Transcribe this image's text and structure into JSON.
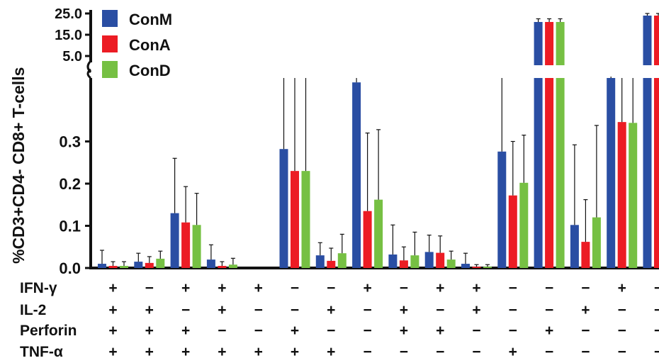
{
  "chart_data": {
    "type": "bar",
    "ylabel": "%CD3+CD4- CD8+ T-cells",
    "y_axis_lower": {
      "range": [
        0,
        0.45
      ],
      "ticks": [
        "0.0",
        "0.1",
        "0.2",
        "0.3"
      ]
    },
    "y_axis_upper": {
      "range": [
        0,
        25
      ],
      "ticks": [
        "5.0",
        "15.0",
        "25.0"
      ]
    },
    "axis_break": true,
    "legend": {
      "position": "top-left",
      "entries": [
        "ConM",
        "ConA",
        "ConD"
      ]
    },
    "colors": {
      "ConM": "#2a4ea3",
      "ConA": "#ec1c24",
      "ConD": "#76c043"
    },
    "condition_rows": [
      "IFN-γ",
      "IL-2",
      "Perforin",
      "TNF-α"
    ],
    "categories": [
      {
        "signs": [
          "+",
          "+",
          "+",
          "+"
        ]
      },
      {
        "signs": [
          "−",
          "+",
          "+",
          "+"
        ]
      },
      {
        "signs": [
          "+",
          "−",
          "+",
          "+"
        ]
      },
      {
        "signs": [
          "+",
          "+",
          "−",
          "+"
        ]
      },
      {
        "signs": [
          "+",
          "−",
          "−",
          "+"
        ]
      },
      {
        "signs": [
          "−",
          "−",
          "+",
          "+"
        ]
      },
      {
        "signs": [
          "−",
          "+",
          "−",
          "+"
        ]
      },
      {
        "signs": [
          "+",
          "−",
          "−",
          "−"
        ]
      },
      {
        "signs": [
          "−",
          "+",
          "+",
          "−"
        ]
      },
      {
        "signs": [
          "+",
          "−",
          "+",
          "−"
        ]
      },
      {
        "signs": [
          "+",
          "+",
          "−",
          "−"
        ]
      },
      {
        "signs": [
          "−",
          "−",
          "−",
          "+"
        ]
      },
      {
        "signs": [
          "−",
          "−",
          "+",
          "−"
        ]
      },
      {
        "signs": [
          "−",
          "+",
          "−",
          "−"
        ]
      },
      {
        "signs": [
          "+",
          "−",
          "−",
          "−"
        ]
      },
      {
        "signs": [
          "−",
          "−",
          "−",
          "−"
        ]
      }
    ],
    "series": [
      {
        "name": "ConM",
        "values": [
          0.01,
          0.015,
          0.13,
          0.02,
          0.0,
          0.282,
          0.03,
          0.44,
          0.032,
          0.038,
          0.01,
          0.276,
          21.0,
          0.102,
          0.56,
          24.0
        ],
        "errors": [
          0.032,
          0.02,
          0.13,
          0.035,
          0.0,
          0.3,
          0.03,
          0.3,
          0.07,
          0.04,
          0.025,
          0.3,
          1.5,
          0.19,
          0.3,
          1.0
        ]
      },
      {
        "name": "ConA",
        "values": [
          0.005,
          0.012,
          0.108,
          0.005,
          0.0,
          0.23,
          0.017,
          0.135,
          0.018,
          0.036,
          0.003,
          0.172,
          21.0,
          0.062,
          0.346,
          24.0
        ],
        "errors": [
          0.01,
          0.015,
          0.085,
          0.01,
          0.0,
          0.3,
          0.03,
          0.185,
          0.032,
          0.04,
          0.005,
          0.128,
          1.5,
          0.1,
          0.3,
          1.0
        ]
      },
      {
        "name": "ConD",
        "values": [
          0.005,
          0.022,
          0.102,
          0.008,
          0.0,
          0.23,
          0.035,
          0.162,
          0.03,
          0.02,
          0.003,
          0.202,
          21.0,
          0.12,
          0.344,
          24.0
        ],
        "errors": [
          0.01,
          0.018,
          0.075,
          0.015,
          0.0,
          0.3,
          0.045,
          0.166,
          0.055,
          0.02,
          0.005,
          0.113,
          1.5,
          0.218,
          0.3,
          1.0
        ]
      }
    ]
  }
}
